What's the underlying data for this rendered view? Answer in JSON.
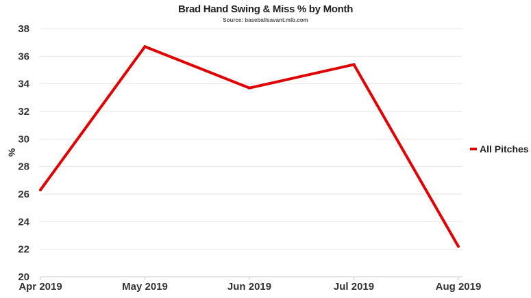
{
  "chart_data": {
    "type": "line",
    "title": "Brad Hand Swing & Miss % by Month",
    "subtitle": "Source: baseballsavant.mlb.com",
    "xlabel": "",
    "ylabel": "%",
    "categories": [
      "Apr 2019",
      "May 2019",
      "Jun 2019",
      "Jul 2019",
      "Aug 2019"
    ],
    "series": [
      {
        "name": "All Pitches",
        "values": [
          26.3,
          36.7,
          33.7,
          35.4,
          22.2
        ],
        "color": "#e00000"
      }
    ],
    "ylim": [
      20,
      38
    ],
    "yticks": [
      "20",
      "22",
      "24",
      "26",
      "28",
      "30",
      "32",
      "34",
      "36",
      "38"
    ],
    "grid": true,
    "legend_position": "right"
  }
}
